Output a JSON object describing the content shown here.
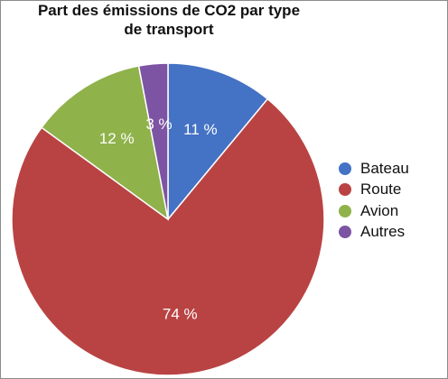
{
  "chart_data": {
    "type": "pie",
    "title_lines": [
      "Part des émissions de CO2 par type",
      "de transport"
    ],
    "slices": [
      {
        "name": "Bateau",
        "value": 11,
        "label": "11 %",
        "color": "#4472c4"
      },
      {
        "name": "Route",
        "value": 74,
        "label": "74 %",
        "color": "#b94343"
      },
      {
        "name": "Avion",
        "value": 12,
        "label": "12 %",
        "color": "#8fb24b"
      },
      {
        "name": "Autres",
        "value": 3,
        "label": "3 %",
        "color": "#7d54a3"
      }
    ],
    "legend": {
      "placement": "right"
    },
    "start_angle_deg": 0,
    "direction": "clockwise"
  }
}
